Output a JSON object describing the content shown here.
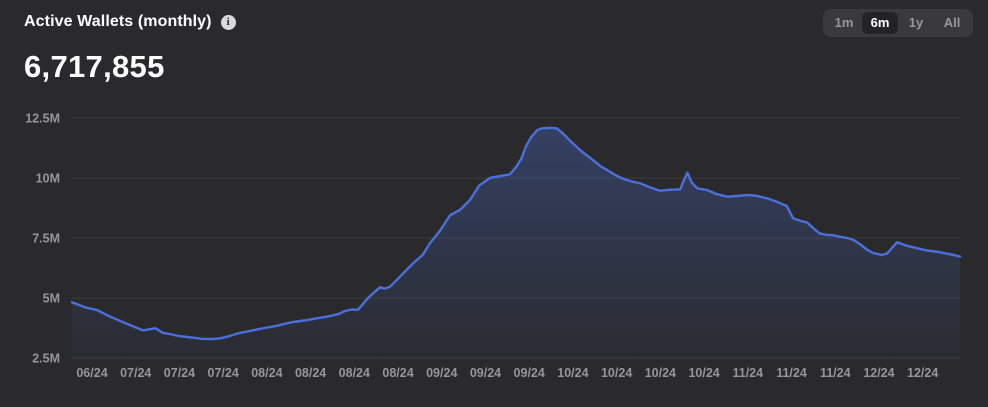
{
  "header": {
    "title": "Active Wallets (monthly)",
    "info_glyph": "i",
    "value": "6,717,855"
  },
  "range_selector": {
    "options": [
      {
        "label": "1m",
        "active": false
      },
      {
        "label": "6m",
        "active": true
      },
      {
        "label": "1y",
        "active": false
      },
      {
        "label": "All",
        "active": false
      }
    ]
  },
  "colors": {
    "background": "#2a2a2c",
    "line": "#4b70dc",
    "grid": "#3c3c3f",
    "axis_text": "#96969a",
    "title_text": "#ffffff",
    "button_group_bg": "#3a3a3c",
    "button_active_bg": "#232325",
    "button_inactive_text": "#98989c"
  },
  "chart_data": {
    "type": "area",
    "title": "Active Wallets (monthly)",
    "series_name": "Active Wallets",
    "current_value": 6717855,
    "unit": "millions of wallets",
    "ylim_millions": [
      2.5,
      12.5
    ],
    "grid": true,
    "legend_position": "none",
    "y_tick_values": [
      12.5,
      10,
      7.5,
      5,
      2.5
    ],
    "y_tick_labels": [
      "12.5M",
      "10M",
      "7.5M",
      "5M",
      "2.5M"
    ],
    "x_tick_labels": [
      "06/24",
      "07/24",
      "07/24",
      "07/24",
      "08/24",
      "08/24",
      "08/24",
      "08/24",
      "09/24",
      "09/24",
      "09/24",
      "10/24",
      "10/24",
      "10/24",
      "10/24",
      "11/24",
      "11/24",
      "11/24",
      "12/24",
      "12/24"
    ],
    "points_note": "t = fraction across the 6-month window, v = active wallets in millions",
    "points": [
      [
        0.0,
        4.82
      ],
      [
        0.015,
        4.61
      ],
      [
        0.028,
        4.5
      ],
      [
        0.043,
        4.22
      ],
      [
        0.062,
        3.92
      ],
      [
        0.08,
        3.65
      ],
      [
        0.088,
        3.7
      ],
      [
        0.094,
        3.74
      ],
      [
        0.102,
        3.55
      ],
      [
        0.11,
        3.5
      ],
      [
        0.12,
        3.42
      ],
      [
        0.129,
        3.38
      ],
      [
        0.138,
        3.34
      ],
      [
        0.146,
        3.3
      ],
      [
        0.158,
        3.29
      ],
      [
        0.167,
        3.32
      ],
      [
        0.178,
        3.42
      ],
      [
        0.186,
        3.52
      ],
      [
        0.2,
        3.62
      ],
      [
        0.21,
        3.7
      ],
      [
        0.22,
        3.77
      ],
      [
        0.229,
        3.83
      ],
      [
        0.239,
        3.92
      ],
      [
        0.249,
        4.0
      ],
      [
        0.257,
        4.04
      ],
      [
        0.265,
        4.08
      ],
      [
        0.274,
        4.14
      ],
      [
        0.282,
        4.19
      ],
      [
        0.29,
        4.24
      ],
      [
        0.3,
        4.33
      ],
      [
        0.307,
        4.45
      ],
      [
        0.315,
        4.52
      ],
      [
        0.322,
        4.51
      ],
      [
        0.327,
        4.72
      ],
      [
        0.332,
        4.95
      ],
      [
        0.337,
        5.13
      ],
      [
        0.341,
        5.26
      ],
      [
        0.347,
        5.45
      ],
      [
        0.352,
        5.39
      ],
      [
        0.358,
        5.47
      ],
      [
        0.365,
        5.72
      ],
      [
        0.373,
        6.03
      ],
      [
        0.384,
        6.44
      ],
      [
        0.395,
        6.8
      ],
      [
        0.403,
        7.28
      ],
      [
        0.414,
        7.78
      ],
      [
        0.426,
        8.46
      ],
      [
        0.437,
        8.67
      ],
      [
        0.448,
        9.08
      ],
      [
        0.459,
        9.7
      ],
      [
        0.471,
        10.01
      ],
      [
        0.482,
        10.08
      ],
      [
        0.493,
        10.15
      ],
      [
        0.5,
        10.45
      ],
      [
        0.506,
        10.8
      ],
      [
        0.511,
        11.3
      ],
      [
        0.517,
        11.7
      ],
      [
        0.524,
        12.0
      ],
      [
        0.53,
        12.07
      ],
      [
        0.538,
        12.09
      ],
      [
        0.546,
        12.07
      ],
      [
        0.553,
        11.85
      ],
      [
        0.562,
        11.51
      ],
      [
        0.572,
        11.17
      ],
      [
        0.583,
        10.85
      ],
      [
        0.595,
        10.5
      ],
      [
        0.604,
        10.3
      ],
      [
        0.613,
        10.1
      ],
      [
        0.622,
        9.95
      ],
      [
        0.631,
        9.85
      ],
      [
        0.64,
        9.78
      ],
      [
        0.651,
        9.61
      ],
      [
        0.662,
        9.47
      ],
      [
        0.673,
        9.51
      ],
      [
        0.685,
        9.53
      ],
      [
        0.689,
        9.9
      ],
      [
        0.693,
        10.22
      ],
      [
        0.698,
        9.81
      ],
      [
        0.704,
        9.57
      ],
      [
        0.715,
        9.5
      ],
      [
        0.726,
        9.33
      ],
      [
        0.738,
        9.22
      ],
      [
        0.749,
        9.25
      ],
      [
        0.761,
        9.29
      ],
      [
        0.771,
        9.26
      ],
      [
        0.783,
        9.15
      ],
      [
        0.794,
        9.01
      ],
      [
        0.805,
        8.83
      ],
      [
        0.812,
        8.32
      ],
      [
        0.82,
        8.22
      ],
      [
        0.828,
        8.14
      ],
      [
        0.835,
        7.9
      ],
      [
        0.842,
        7.69
      ],
      [
        0.85,
        7.63
      ],
      [
        0.857,
        7.62
      ],
      [
        0.865,
        7.55
      ],
      [
        0.873,
        7.5
      ],
      [
        0.88,
        7.42
      ],
      [
        0.887,
        7.25
      ],
      [
        0.895,
        7.02
      ],
      [
        0.902,
        6.88
      ],
      [
        0.912,
        6.79
      ],
      [
        0.918,
        6.86
      ],
      [
        0.929,
        7.32
      ],
      [
        0.94,
        7.18
      ],
      [
        0.952,
        7.07
      ],
      [
        0.963,
        6.98
      ],
      [
        0.974,
        6.93
      ],
      [
        0.985,
        6.85
      ],
      [
        0.992,
        6.8
      ],
      [
        1.0,
        6.73
      ]
    ]
  }
}
